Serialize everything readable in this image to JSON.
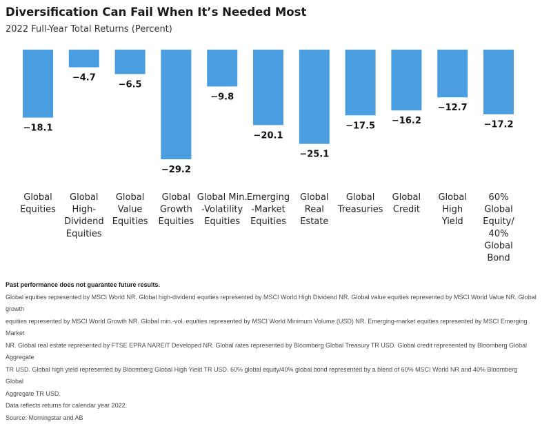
{
  "header": {
    "title": "Diversification Can Fail When It’s Needed Most",
    "subtitle": "2022 Full-Year Total Returns (Percent)"
  },
  "chart_data": {
    "type": "bar",
    "categories": [
      [
        "Global",
        "Equities"
      ],
      [
        "Global",
        "High-",
        "Dividend",
        "Equities"
      ],
      [
        "Global",
        "Value",
        "Equities"
      ],
      [
        "Global",
        "Growth",
        "Equities"
      ],
      [
        "Global Min.",
        "-Volatility",
        "Equities"
      ],
      [
        "Emerging",
        "-Market",
        "Equities"
      ],
      [
        "Global",
        "Real",
        "Estate"
      ],
      [
        "Global",
        "Treasuries"
      ],
      [
        "Global",
        "Credit"
      ],
      [
        "Global",
        "High",
        "Yield"
      ],
      [
        "60%",
        "Global",
        "Equity/",
        "40%",
        "Global",
        "Bond"
      ]
    ],
    "values": [
      -18.1,
      -4.7,
      -6.5,
      -29.2,
      -9.8,
      -20.1,
      -25.1,
      -17.5,
      -16.2,
      -12.7,
      -17.2
    ],
    "value_labels": [
      "−18.1",
      "−4.7",
      "−6.5",
      "−29.2",
      "−9.8",
      "−20.1",
      "−25.1",
      "−17.5",
      "−16.2",
      "−12.7",
      "−17.2"
    ],
    "bar_color": "#4a9ee0",
    "ylim": [
      -29.2,
      0
    ],
    "grid": false,
    "legend": "none"
  },
  "footnotes": {
    "disclaimer": "Past performance does not guarantee future results.",
    "lines": [
      "Global equities represented by MSCI World NR. Global high-dividend equities represented by MSCI World High Dividend NR. Global value equities represented by MSCI World Value NR. Global growth",
      "equities represented by MSCI World Growth NR. Global min.-vol. equities represented by MSCI World Minimum Volume (USD) NR. Emerging-market equities represented by MSCI Emerging Market",
      "NR. Global real estate represented by FTSE EPRA NAREIT Developed NR. Global rates represented by Bloomberg Global Treasury TR USD. Global credit represented by Bloomberg Global Aggregate",
      "TR USD. Global high yield represented by Bloomberg Global High Yield TR USD. 60% global equity/40% global bond represented by a blend of 60% MSCI World NR and 40% Bloomberg Global",
      "Aggregate TR USD."
    ],
    "data_note": "Data reflects returns for calendar year 2022.",
    "source": "Source: Morningstar and AB"
  }
}
